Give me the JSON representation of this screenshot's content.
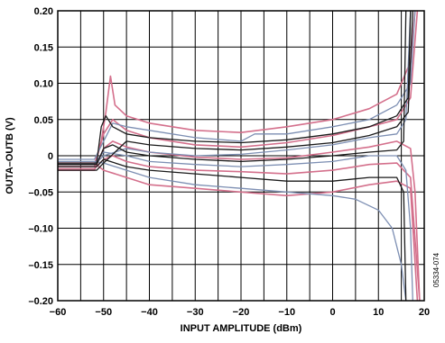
{
  "chart_data": {
    "type": "line",
    "title": "",
    "xlabel": "INPUT AMPLITUDE (dBm)",
    "ylabel": "OUTA–OUTB (V)",
    "xlim": [
      -60,
      20
    ],
    "ylim": [
      -0.2,
      0.2
    ],
    "grid": true,
    "x_ticks": [
      -60,
      -55,
      -50,
      -45,
      -40,
      -35,
      -30,
      -25,
      -20,
      -15,
      -10,
      -5,
      0,
      5,
      10,
      15,
      20
    ],
    "x_tick_labels": [
      "−60",
      "",
      "−50",
      "",
      "−40",
      "",
      "−30",
      "",
      "−20",
      "",
      "−10",
      "",
      "0",
      "",
      "10",
      "",
      "20"
    ],
    "y_ticks": [
      -0.2,
      -0.15,
      -0.1,
      -0.05,
      0,
      0.05,
      0.1,
      0.15,
      0.2
    ],
    "y_tick_labels": [
      "–0.20",
      "–0.15",
      "–0.10",
      "–0.05",
      "0",
      "0.05",
      "0.10",
      "0.15",
      "0.20"
    ],
    "figure_id": "05334-074",
    "colors": {
      "black": "#1a1a1a",
      "blue": "#7d8fb3",
      "pink": "#d4708c"
    },
    "series": [
      {
        "color": "pink",
        "points": [
          [
            -60,
            -0.012
          ],
          [
            -52,
            -0.012
          ],
          [
            -50.5,
            0.02
          ],
          [
            -49.5,
            0.06
          ],
          [
            -48.5,
            0.11
          ],
          [
            -47.5,
            0.07
          ],
          [
            -45,
            0.055
          ],
          [
            -40,
            0.045
          ],
          [
            -30,
            0.035
          ],
          [
            -20,
            0.032
          ],
          [
            -10,
            0.04
          ],
          [
            0,
            0.05
          ],
          [
            8,
            0.065
          ],
          [
            14,
            0.085
          ],
          [
            17,
            0.13
          ],
          [
            18,
            0.2
          ]
        ]
      },
      {
        "color": "pink",
        "points": [
          [
            -60,
            -0.015
          ],
          [
            -52,
            -0.015
          ],
          [
            -50,
            0.03
          ],
          [
            -48,
            0.05
          ],
          [
            -45,
            0.035
          ],
          [
            -40,
            0.025
          ],
          [
            -30,
            0.015
          ],
          [
            -20,
            0.012
          ],
          [
            -10,
            0.018
          ],
          [
            0,
            0.028
          ],
          [
            8,
            0.04
          ],
          [
            14,
            0.05
          ],
          [
            17,
            0.08
          ],
          [
            18.5,
            0.2
          ]
        ]
      },
      {
        "color": "pink",
        "points": [
          [
            -60,
            -0.02
          ],
          [
            -52,
            -0.02
          ],
          [
            -50,
            0.01
          ],
          [
            -48,
            0.02
          ],
          [
            -45,
            0.012
          ],
          [
            -40,
            0.005
          ],
          [
            -30,
            -0.002
          ],
          [
            -20,
            -0.005
          ],
          [
            -10,
            -0.003
          ],
          [
            0,
            0.005
          ],
          [
            8,
            0.012
          ],
          [
            14,
            0.02
          ],
          [
            17,
            0.01
          ],
          [
            18,
            -0.05
          ],
          [
            19,
            -0.2
          ]
        ]
      },
      {
        "color": "pink",
        "points": [
          [
            -60,
            -0.018
          ],
          [
            -52,
            -0.018
          ],
          [
            -50,
            -0.005
          ],
          [
            -48,
            0.0
          ],
          [
            -45,
            -0.008
          ],
          [
            -40,
            -0.015
          ],
          [
            -30,
            -0.02
          ],
          [
            -20,
            -0.022
          ],
          [
            -10,
            -0.025
          ],
          [
            0,
            -0.02
          ],
          [
            8,
            -0.012
          ],
          [
            14,
            -0.01
          ],
          [
            17,
            -0.03
          ],
          [
            19,
            -0.2
          ]
        ]
      },
      {
        "color": "pink",
        "points": [
          [
            -60,
            -0.01
          ],
          [
            -52,
            -0.01
          ],
          [
            -50,
            -0.02
          ],
          [
            -45,
            -0.03
          ],
          [
            -40,
            -0.04
          ],
          [
            -30,
            -0.045
          ],
          [
            -20,
            -0.05
          ],
          [
            -10,
            -0.055
          ],
          [
            0,
            -0.05
          ],
          [
            8,
            -0.04
          ],
          [
            14,
            -0.035
          ],
          [
            17,
            -0.045
          ],
          [
            18.5,
            -0.2
          ]
        ]
      },
      {
        "color": "blue",
        "points": [
          [
            -60,
            -0.005
          ],
          [
            -52,
            -0.005
          ],
          [
            -50,
            0.02
          ],
          [
            -48,
            0.045
          ],
          [
            -45,
            0.04
          ],
          [
            -40,
            0.035
          ],
          [
            -30,
            0.025
          ],
          [
            -20,
            0.02
          ],
          [
            -17,
            0.03
          ],
          [
            -10,
            0.03
          ],
          [
            0,
            0.04
          ],
          [
            8,
            0.05
          ],
          [
            14,
            0.07
          ],
          [
            17,
            0.1
          ],
          [
            18,
            0.2
          ]
        ]
      },
      {
        "color": "blue",
        "points": [
          [
            -60,
            -0.01
          ],
          [
            -52,
            -0.01
          ],
          [
            -50,
            0.005
          ],
          [
            -45,
            0.0
          ],
          [
            -40,
            -0.008
          ],
          [
            -30,
            -0.012
          ],
          [
            -20,
            -0.015
          ],
          [
            -10,
            -0.012
          ],
          [
            0,
            -0.008
          ],
          [
            8,
            0.0
          ],
          [
            14,
            0.0
          ],
          [
            16,
            -0.02
          ],
          [
            17,
            -0.1
          ],
          [
            17.5,
            -0.2
          ]
        ]
      },
      {
        "color": "blue",
        "points": [
          [
            -60,
            -0.008
          ],
          [
            -52,
            -0.008
          ],
          [
            -50,
            -0.01
          ],
          [
            -45,
            -0.02
          ],
          [
            -40,
            -0.03
          ],
          [
            -30,
            -0.04
          ],
          [
            -20,
            -0.045
          ],
          [
            -10,
            -0.05
          ],
          [
            0,
            -0.055
          ],
          [
            5,
            -0.06
          ],
          [
            10,
            -0.075
          ],
          [
            13,
            -0.1
          ],
          [
            15,
            -0.15
          ],
          [
            16,
            -0.2
          ]
        ]
      },
      {
        "color": "blue",
        "points": [
          [
            -60,
            -0.012
          ],
          [
            -52,
            -0.012
          ],
          [
            -50,
            0.0
          ],
          [
            -45,
            0.01
          ],
          [
            -40,
            0.005
          ],
          [
            -30,
            0.0
          ],
          [
            -20,
            0.002
          ],
          [
            -10,
            0.008
          ],
          [
            0,
            0.015
          ],
          [
            8,
            0.025
          ],
          [
            14,
            0.03
          ],
          [
            16,
            0.05
          ],
          [
            17,
            0.2
          ]
        ]
      },
      {
        "color": "black",
        "points": [
          [
            -60,
            -0.01
          ],
          [
            -51.5,
            -0.01
          ],
          [
            -50.5,
            0.04
          ],
          [
            -49.5,
            0.055
          ],
          [
            -48,
            0.04
          ],
          [
            -45,
            0.03
          ],
          [
            -40,
            0.025
          ],
          [
            -30,
            0.02
          ],
          [
            -20,
            0.018
          ],
          [
            -10,
            0.022
          ],
          [
            0,
            0.03
          ],
          [
            8,
            0.04
          ],
          [
            14,
            0.055
          ],
          [
            16.5,
            0.08
          ],
          [
            17,
            0.2
          ]
        ]
      },
      {
        "color": "black",
        "points": [
          [
            -60,
            -0.012
          ],
          [
            -51.5,
            -0.012
          ],
          [
            -50,
            0.01
          ],
          [
            -48,
            0.015
          ],
          [
            -45,
            0.005
          ],
          [
            -40,
            0.0
          ],
          [
            -30,
            -0.005
          ],
          [
            -20,
            -0.008
          ],
          [
            -10,
            -0.005
          ],
          [
            0,
            0.0
          ],
          [
            8,
            0.005
          ],
          [
            14,
            0.008
          ],
          [
            15.5,
            0.02
          ],
          [
            16,
            0.2
          ]
        ]
      },
      {
        "color": "black",
        "points": [
          [
            -60,
            -0.015
          ],
          [
            -51.5,
            -0.015
          ],
          [
            -50,
            -0.005
          ],
          [
            -45,
            -0.015
          ],
          [
            -40,
            -0.02
          ],
          [
            -30,
            -0.025
          ],
          [
            -20,
            -0.03
          ],
          [
            -10,
            -0.035
          ],
          [
            0,
            -0.035
          ],
          [
            8,
            -0.03
          ],
          [
            14,
            -0.03
          ],
          [
            15.5,
            -0.05
          ],
          [
            16,
            -0.2
          ]
        ]
      },
      {
        "color": "black",
        "points": [
          [
            -60,
            -0.02
          ],
          [
            -51.5,
            -0.02
          ],
          [
            -50,
            -0.01
          ],
          [
            -45,
            0.02
          ],
          [
            -40,
            0.015
          ],
          [
            -30,
            0.01
          ],
          [
            -20,
            0.008
          ],
          [
            -10,
            0.012
          ],
          [
            0,
            0.018
          ],
          [
            8,
            0.028
          ],
          [
            14,
            0.04
          ],
          [
            16.5,
            0.06
          ],
          [
            17.5,
            0.2
          ]
        ]
      }
    ]
  }
}
